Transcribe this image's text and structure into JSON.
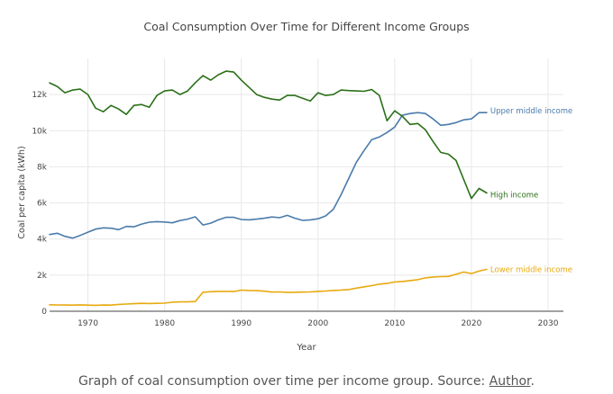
{
  "chart_data": {
    "type": "line",
    "title": "Coal Consumption Over Time for Different Income Groups",
    "xlabel": "Year",
    "ylabel": "Coal per capita (kWh)",
    "xlim": [
      1965,
      2032
    ],
    "ylim": [
      0,
      14000
    ],
    "x_ticks": [
      1970,
      1980,
      1990,
      2000,
      2010,
      2020,
      2030
    ],
    "x_tick_labels": [
      "1970",
      "1980",
      "1990",
      "2000",
      "2010",
      "2020",
      "2030"
    ],
    "y_ticks": [
      0,
      2000,
      4000,
      6000,
      8000,
      10000,
      12000
    ],
    "y_tick_labels": [
      "0",
      "2k",
      "4k",
      "6k",
      "8k",
      "10k",
      "12k"
    ],
    "grid": true,
    "legend": "direct labels at line ends",
    "x": [
      1965,
      1966,
      1967,
      1968,
      1969,
      1970,
      1971,
      1972,
      1973,
      1974,
      1975,
      1976,
      1977,
      1978,
      1979,
      1980,
      1981,
      1982,
      1983,
      1984,
      1985,
      1986,
      1987,
      1988,
      1989,
      1990,
      1991,
      1992,
      1993,
      1994,
      1995,
      1996,
      1997,
      1998,
      1999,
      2000,
      2001,
      2002,
      2003,
      2004,
      2005,
      2006,
      2007,
      2008,
      2009,
      2010,
      2011,
      2012,
      2013,
      2014,
      2015,
      2016,
      2017,
      2018,
      2019,
      2020,
      2021,
      2022
    ],
    "series": [
      {
        "name": "Upper middle income",
        "color": "#4a7bab",
        "values": [
          4250,
          4320,
          4150,
          4050,
          4200,
          4380,
          4550,
          4620,
          4600,
          4520,
          4700,
          4680,
          4830,
          4930,
          4960,
          4940,
          4900,
          5020,
          5100,
          5230,
          4780,
          4880,
          5060,
          5200,
          5200,
          5080,
          5060,
          5100,
          5150,
          5220,
          5180,
          5310,
          5150,
          5030,
          5060,
          5120,
          5280,
          5650,
          6450,
          7350,
          8250,
          8900,
          9500,
          9650,
          9900,
          10200,
          10850,
          10950,
          11000,
          10950,
          10650,
          10300,
          10350,
          10450,
          10600,
          10650,
          11000,
          11000
        ]
      },
      {
        "name": "High income",
        "color": "#2b7018",
        "values": [
          12650,
          12450,
          12100,
          12250,
          12300,
          12000,
          11250,
          11050,
          11400,
          11200,
          10900,
          11400,
          11450,
          11300,
          11950,
          12200,
          12250,
          12000,
          12200,
          12650,
          13050,
          12800,
          13100,
          13300,
          13250,
          12800,
          12400,
          12000,
          11850,
          11750,
          11700,
          11950,
          11950,
          11800,
          11650,
          12100,
          11950,
          12000,
          12250,
          12220,
          12200,
          12180,
          12280,
          11950,
          10550,
          11100,
          10800,
          10350,
          10400,
          10050,
          9400,
          8800,
          8700,
          8350,
          7300,
          6250,
          6800,
          6550
        ]
      },
      {
        "name": "Lower middle income",
        "color": "#e8a90e",
        "values": [
          360,
          350,
          345,
          340,
          355,
          340,
          330,
          345,
          340,
          380,
          400,
          420,
          440,
          430,
          440,
          450,
          500,
          520,
          520,
          540,
          1050,
          1080,
          1100,
          1100,
          1090,
          1170,
          1150,
          1140,
          1110,
          1060,
          1070,
          1040,
          1050,
          1060,
          1070,
          1100,
          1120,
          1150,
          1170,
          1200,
          1280,
          1350,
          1420,
          1500,
          1540,
          1620,
          1650,
          1700,
          1750,
          1850,
          1900,
          1920,
          1930,
          2050,
          2170,
          2090,
          2220,
          2320
        ]
      }
    ]
  },
  "caption": {
    "text": "Graph of coal consumption over time per income group. Source: ",
    "link_text": "Author",
    "end": "."
  }
}
